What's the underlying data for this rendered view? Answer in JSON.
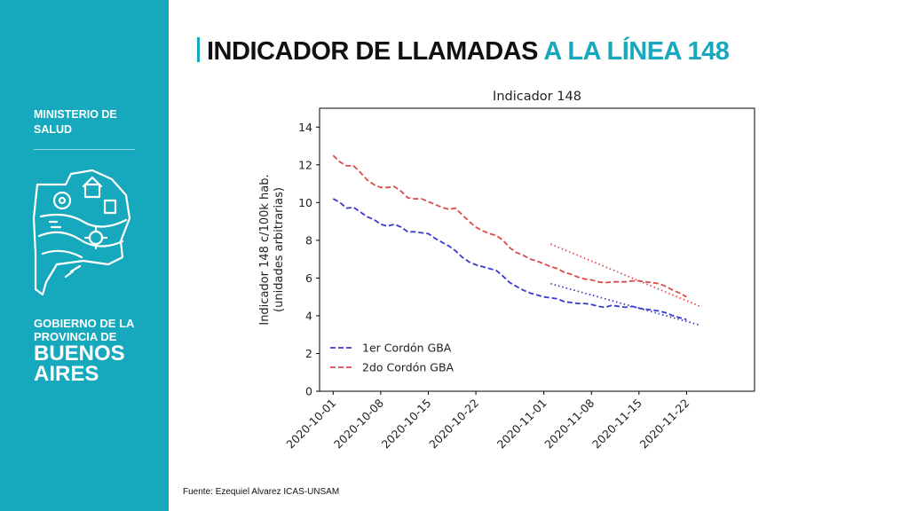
{
  "sidebar": {
    "ministry": "MINISTERIO DE SALUD",
    "government_line1": "GOBIERNO DE LA",
    "government_line2": "PROVINCIA DE",
    "province_name": "BUENOS AIRES",
    "background_color": "#16a8bd"
  },
  "header": {
    "title_part1": "INDICADOR DE LLAMADAS",
    "title_part2": "A LA LÍNEA 148"
  },
  "footer": {
    "source": "Fuente: Ezequiel Alvarez ICAS-UNSAM"
  },
  "chart_data": {
    "type": "line",
    "title": "Indicador 148",
    "ylabel": "Indicador 148 c/100k hab.",
    "ylabel2": "(unidades arbitrarias)",
    "xlabel": "",
    "ylim": [
      0,
      15
    ],
    "yticks": [
      0,
      2,
      4,
      6,
      8,
      10,
      12,
      14
    ],
    "xlim": [
      "2020-09-29",
      "2020-12-02"
    ],
    "xticks": [
      "2020-10-01",
      "2020-10-08",
      "2020-10-15",
      "2020-10-22",
      "2020-11-01",
      "2020-11-08",
      "2020-11-15",
      "2020-11-22"
    ],
    "grid": false,
    "legend_position": "lower-left",
    "series": [
      {
        "name": "1er Cordón GBA",
        "color": "#3a3acc",
        "style": "dashed",
        "x": [
          "2020-10-01",
          "2020-10-02",
          "2020-10-03",
          "2020-10-04",
          "2020-10-05",
          "2020-10-06",
          "2020-10-07",
          "2020-10-08",
          "2020-10-09",
          "2020-10-10",
          "2020-10-11",
          "2020-10-12",
          "2020-10-13",
          "2020-10-14",
          "2020-10-15",
          "2020-10-16",
          "2020-10-17",
          "2020-10-18",
          "2020-10-19",
          "2020-10-20",
          "2020-10-21",
          "2020-10-22",
          "2020-10-23",
          "2020-10-24",
          "2020-10-25",
          "2020-10-26",
          "2020-10-27",
          "2020-10-28",
          "2020-10-29",
          "2020-10-30",
          "2020-10-31",
          "2020-11-01",
          "2020-11-02",
          "2020-11-03",
          "2020-11-04",
          "2020-11-05",
          "2020-11-06",
          "2020-11-07",
          "2020-11-08",
          "2020-11-09",
          "2020-11-10",
          "2020-11-11",
          "2020-11-12",
          "2020-11-13",
          "2020-11-14",
          "2020-11-15",
          "2020-11-16",
          "2020-11-17",
          "2020-11-18",
          "2020-11-19",
          "2020-11-20",
          "2020-11-21",
          "2020-11-22"
        ],
        "values": [
          10.2,
          10.0,
          9.7,
          9.75,
          9.5,
          9.25,
          9.1,
          8.85,
          8.75,
          8.85,
          8.7,
          8.45,
          8.45,
          8.4,
          8.35,
          8.1,
          7.9,
          7.7,
          7.45,
          7.1,
          6.85,
          6.7,
          6.6,
          6.5,
          6.4,
          6.1,
          5.75,
          5.55,
          5.35,
          5.2,
          5.1,
          5.0,
          4.95,
          4.9,
          4.75,
          4.7,
          4.65,
          4.65,
          4.6,
          4.5,
          4.45,
          4.55,
          4.5,
          4.45,
          4.5,
          4.4,
          4.35,
          4.3,
          4.25,
          4.15,
          4.0,
          3.9,
          3.8
        ]
      },
      {
        "name": "2do Cordón GBA",
        "color": "#dd4a4a",
        "style": "dashed",
        "x": [
          "2020-10-01",
          "2020-10-02",
          "2020-10-03",
          "2020-10-04",
          "2020-10-05",
          "2020-10-06",
          "2020-10-07",
          "2020-10-08",
          "2020-10-09",
          "2020-10-10",
          "2020-10-11",
          "2020-10-12",
          "2020-10-13",
          "2020-10-14",
          "2020-10-15",
          "2020-10-16",
          "2020-10-17",
          "2020-10-18",
          "2020-10-19",
          "2020-10-20",
          "2020-10-21",
          "2020-10-22",
          "2020-10-23",
          "2020-10-24",
          "2020-10-25",
          "2020-10-26",
          "2020-10-27",
          "2020-10-28",
          "2020-10-29",
          "2020-10-30",
          "2020-10-31",
          "2020-11-01",
          "2020-11-02",
          "2020-11-03",
          "2020-11-04",
          "2020-11-05",
          "2020-11-06",
          "2020-11-07",
          "2020-11-08",
          "2020-11-09",
          "2020-11-10",
          "2020-11-11",
          "2020-11-12",
          "2020-11-13",
          "2020-11-14",
          "2020-11-15",
          "2020-11-16",
          "2020-11-17",
          "2020-11-18",
          "2020-11-19",
          "2020-11-20",
          "2020-11-21",
          "2020-11-22"
        ],
        "values": [
          12.5,
          12.15,
          11.95,
          11.95,
          11.6,
          11.2,
          10.95,
          10.8,
          10.8,
          10.85,
          10.6,
          10.25,
          10.2,
          10.2,
          10.05,
          9.9,
          9.75,
          9.65,
          9.7,
          9.35,
          9.0,
          8.7,
          8.5,
          8.35,
          8.25,
          8.0,
          7.6,
          7.35,
          7.2,
          7.0,
          6.9,
          6.75,
          6.6,
          6.5,
          6.3,
          6.2,
          6.05,
          5.95,
          5.9,
          5.8,
          5.75,
          5.8,
          5.8,
          5.8,
          5.85,
          5.85,
          5.8,
          5.75,
          5.7,
          5.55,
          5.35,
          5.2,
          5.0
        ]
      }
    ],
    "trend_lines": [
      {
        "color": "#3a3acc",
        "style": "dotted",
        "x": [
          "2020-11-02",
          "2020-11-24"
        ],
        "values": [
          5.7,
          3.5
        ]
      },
      {
        "color": "#dd4a4a",
        "style": "dotted",
        "x": [
          "2020-11-02",
          "2020-11-24"
        ],
        "values": [
          7.8,
          4.5
        ]
      }
    ]
  }
}
